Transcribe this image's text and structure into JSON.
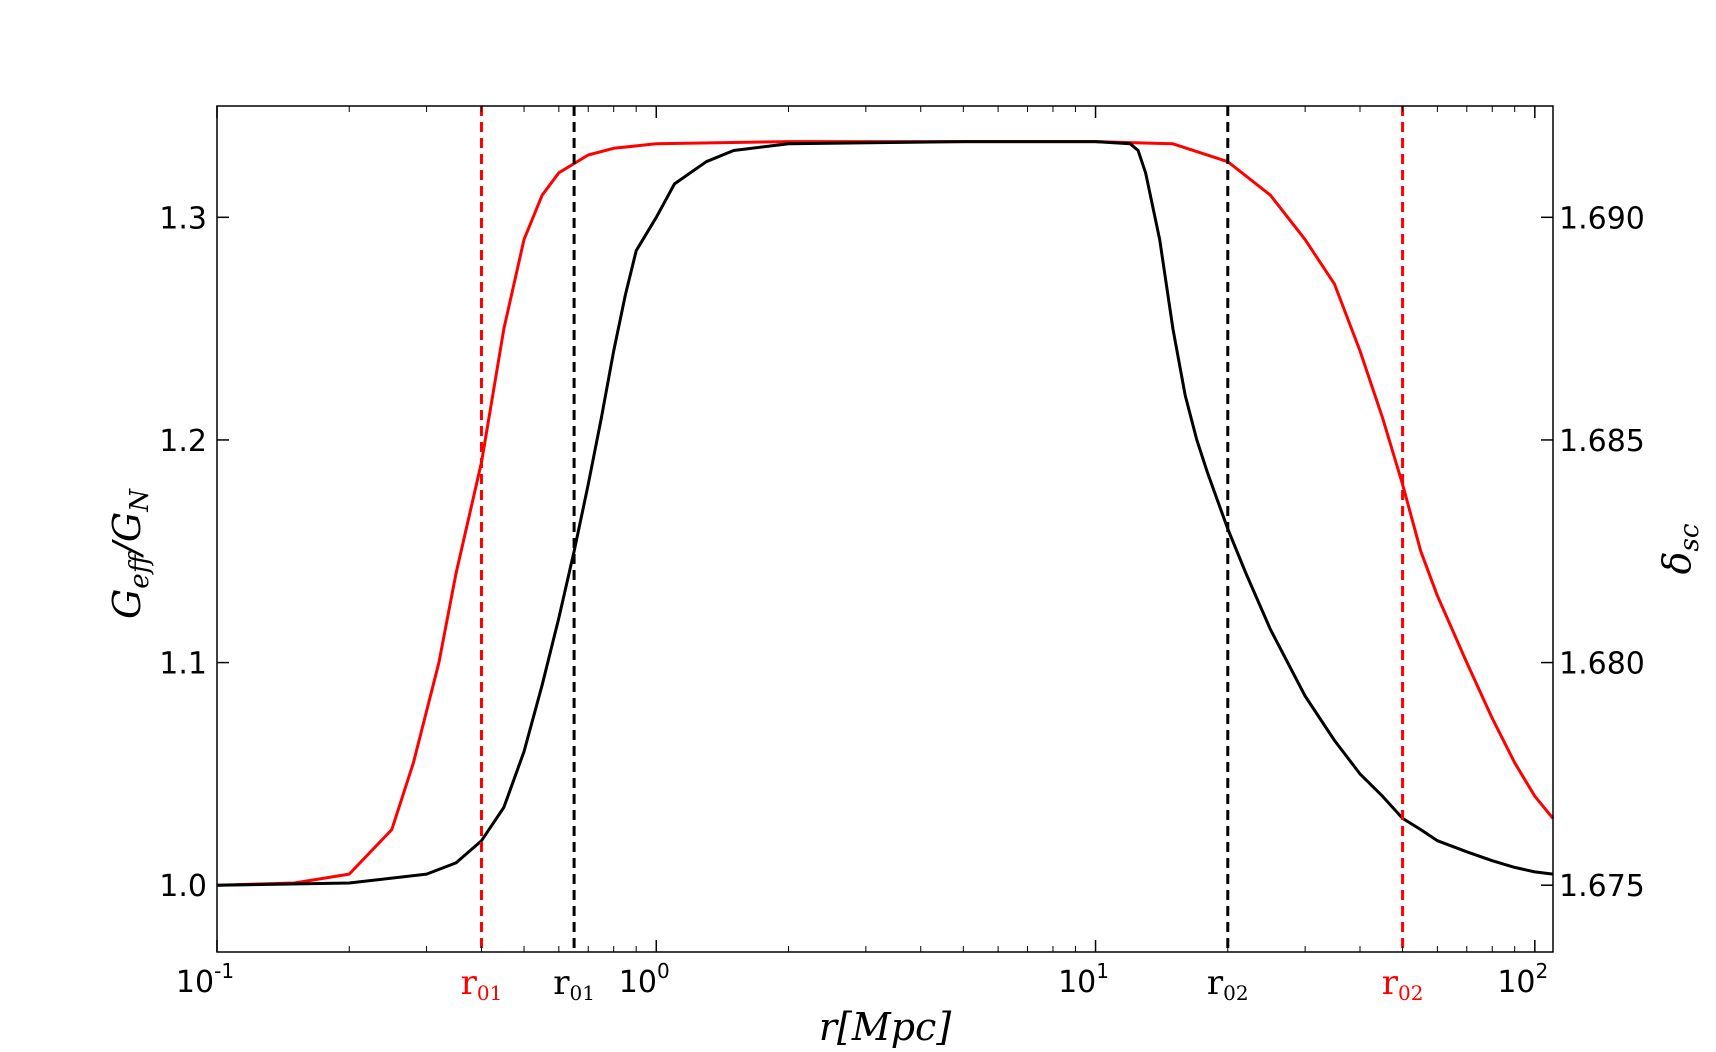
{
  "chart_data": {
    "type": "line",
    "xscale": "log",
    "xlim": [
      0.1,
      110
    ],
    "ylim_left": [
      0.97,
      1.35
    ],
    "ylim_right": [
      1.6735,
      1.6925
    ],
    "xlabel": "r[Mpc]",
    "ylabel_left": {
      "main": "G",
      "sub": "eff",
      "sep": "/G",
      "sub2": "N"
    },
    "ylabel_right": {
      "main": "δ",
      "sub": "sc"
    },
    "x_ticks": [
      {
        "base": "10",
        "exp": "-1",
        "value": 0.1
      },
      {
        "base": "10",
        "exp": "0",
        "value": 1
      },
      {
        "base": "10",
        "exp": "1",
        "value": 10
      },
      {
        "base": "10",
        "exp": "2",
        "value": 100
      }
    ],
    "y_ticks_left": [
      "1.0",
      "1.1",
      "1.2",
      "1.3"
    ],
    "y_ticks_right": [
      "1.675",
      "1.680",
      "1.685",
      "1.690"
    ],
    "colors": {
      "red": "#ff0000",
      "black": "#000000"
    },
    "series": [
      {
        "color": "#ff0000",
        "points": [
          [
            0.1,
            1.0
          ],
          [
            0.15,
            1.001
          ],
          [
            0.2,
            1.005
          ],
          [
            0.25,
            1.025
          ],
          [
            0.28,
            1.055
          ],
          [
            0.32,
            1.1
          ],
          [
            0.35,
            1.14
          ],
          [
            0.4,
            1.19
          ],
          [
            0.45,
            1.25
          ],
          [
            0.5,
            1.29
          ],
          [
            0.55,
            1.31
          ],
          [
            0.6,
            1.32
          ],
          [
            0.7,
            1.328
          ],
          [
            0.8,
            1.331
          ],
          [
            1,
            1.333
          ],
          [
            2,
            1.334
          ],
          [
            10,
            1.334
          ],
          [
            15,
            1.333
          ],
          [
            20,
            1.325
          ],
          [
            25,
            1.31
          ],
          [
            30,
            1.29
          ],
          [
            35,
            1.27
          ],
          [
            40,
            1.24
          ],
          [
            45,
            1.21
          ],
          [
            50,
            1.18
          ],
          [
            55,
            1.15
          ],
          [
            60,
            1.13
          ],
          [
            70,
            1.1
          ],
          [
            80,
            1.075
          ],
          [
            90,
            1.055
          ],
          [
            100,
            1.04
          ],
          [
            110,
            1.03
          ]
        ]
      },
      {
        "color": "#000000",
        "points": [
          [
            0.1,
            1.0
          ],
          [
            0.2,
            1.001
          ],
          [
            0.3,
            1.005
          ],
          [
            0.35,
            1.01
          ],
          [
            0.4,
            1.02
          ],
          [
            0.45,
            1.035
          ],
          [
            0.5,
            1.06
          ],
          [
            0.55,
            1.09
          ],
          [
            0.6,
            1.12
          ],
          [
            0.65,
            1.15
          ],
          [
            0.7,
            1.18
          ],
          [
            0.75,
            1.21
          ],
          [
            0.8,
            1.24
          ],
          [
            0.85,
            1.265
          ],
          [
            0.9,
            1.285
          ],
          [
            1,
            1.3
          ],
          [
            1.1,
            1.315
          ],
          [
            1.3,
            1.325
          ],
          [
            1.5,
            1.33
          ],
          [
            2,
            1.333
          ],
          [
            5,
            1.334
          ],
          [
            10,
            1.334
          ],
          [
            12,
            1.333
          ],
          [
            12.5,
            1.33
          ],
          [
            13,
            1.32
          ],
          [
            14,
            1.29
          ],
          [
            15,
            1.25
          ],
          [
            16,
            1.22
          ],
          [
            17,
            1.2
          ],
          [
            18,
            1.185
          ],
          [
            20,
            1.16
          ],
          [
            22,
            1.14
          ],
          [
            25,
            1.115
          ],
          [
            30,
            1.085
          ],
          [
            35,
            1.065
          ],
          [
            40,
            1.05
          ],
          [
            45,
            1.04
          ],
          [
            50,
            1.03
          ],
          [
            55,
            1.025
          ],
          [
            60,
            1.02
          ],
          [
            70,
            1.015
          ],
          [
            80,
            1.011
          ],
          [
            90,
            1.008
          ],
          [
            100,
            1.006
          ],
          [
            110,
            1.005
          ]
        ]
      }
    ],
    "vlines": [
      {
        "x": 0.4,
        "color": "#ff0000",
        "label": "r",
        "sub": "01"
      },
      {
        "x": 0.65,
        "color": "#000000",
        "label": "r",
        "sub": "01"
      },
      {
        "x": 20,
        "color": "#000000",
        "label": "r",
        "sub": "02"
      },
      {
        "x": 50,
        "color": "#ff0000",
        "label": "r",
        "sub": "02"
      }
    ]
  }
}
